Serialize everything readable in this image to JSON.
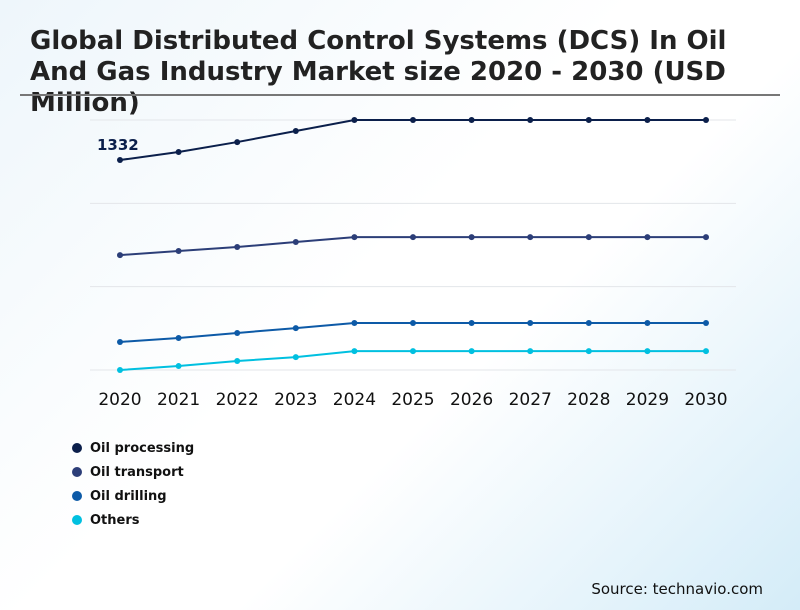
{
  "chart_data": {
    "type": "line",
    "title": "Global Distributed Control Systems (DCS) In Oil And Gas Industry Market size 2020 - 2030 (USD Million)",
    "x": [
      2020,
      2021,
      2022,
      2023,
      2024,
      2025,
      2026,
      2027,
      2028,
      2029,
      2030
    ],
    "ylim": [
      0,
      1586
    ],
    "grid": true,
    "legend": "bottom-left",
    "series": [
      {
        "name": "Oil processing",
        "color": "#0b1f4b",
        "values": [
          1332,
          1383,
          1446,
          1516,
          1586,
          1586,
          1586,
          1586,
          1586,
          1586,
          1586
        ]
      },
      {
        "name": "Oil transport",
        "color": "#2c3e78",
        "values": [
          729,
          755,
          780,
          812,
          843,
          843,
          843,
          843,
          843,
          843,
          843
        ]
      },
      {
        "name": "Oil drilling",
        "color": "#0d5aa7",
        "values": [
          178,
          203,
          235,
          266,
          298,
          298,
          298,
          298,
          298,
          298,
          298
        ]
      },
      {
        "name": "Others",
        "color": "#00c0e0",
        "values": [
          0,
          25,
          57,
          82,
          120,
          120,
          120,
          120,
          120,
          120,
          120
        ]
      }
    ],
    "annotations": [
      {
        "series": "Oil processing",
        "x": 2020,
        "label": "1332"
      }
    ]
  },
  "source": "Source: technavio.com"
}
